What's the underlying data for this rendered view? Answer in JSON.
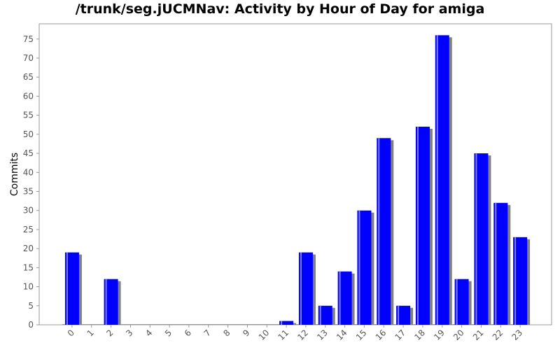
{
  "chart_data": {
    "type": "bar",
    "title": "/trunk/seg.jUCMNav: Activity by Hour of Day for amiga",
    "xlabel": "",
    "ylabel": "Commits",
    "categories": [
      "0",
      "1",
      "2",
      "3",
      "4",
      "5",
      "6",
      "7",
      "8",
      "9",
      "10",
      "11",
      "12",
      "13",
      "14",
      "15",
      "16",
      "17",
      "18",
      "19",
      "20",
      "21",
      "22",
      "23"
    ],
    "values": [
      19,
      0,
      12,
      0,
      0,
      0,
      0,
      0,
      0,
      0,
      0,
      1,
      19,
      5,
      14,
      30,
      49,
      5,
      52,
      76,
      12,
      45,
      32,
      23
    ],
    "ylim": [
      0,
      79
    ],
    "yticks": [
      0,
      5,
      10,
      15,
      20,
      25,
      30,
      35,
      40,
      45,
      50,
      55,
      60,
      65,
      70,
      75
    ],
    "bar_color": "#0000ff",
    "shadow_color": "#808080",
    "grid": false,
    "legend": "none"
  }
}
